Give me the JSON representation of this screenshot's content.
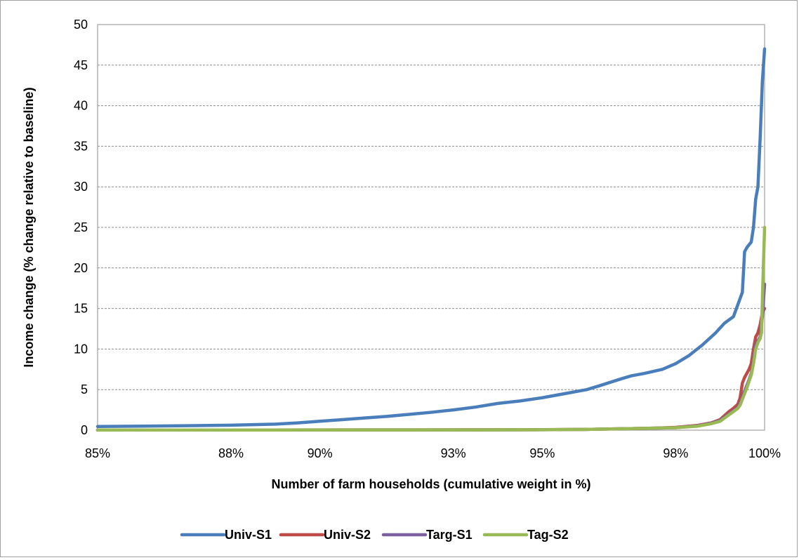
{
  "chart_data": {
    "type": "line",
    "title": "",
    "xlabel": "Number of farm households (cumulative weight in %)",
    "ylabel": "Income change (% change relative to baseline)",
    "xlim": [
      85,
      100
    ],
    "ylim": [
      0,
      50
    ],
    "x_ticks": [
      85,
      88,
      90,
      93,
      95,
      98,
      100
    ],
    "x_tick_labels": [
      "85%",
      "88%",
      "90%",
      "93%",
      "95%",
      "98%",
      "100%"
    ],
    "y_ticks": [
      0,
      5,
      10,
      15,
      20,
      25,
      30,
      35,
      40,
      45,
      50
    ],
    "y_tick_labels": [
      "0",
      "5",
      "10",
      "15",
      "20",
      "25",
      "30",
      "35",
      "40",
      "45",
      "50"
    ],
    "grid": "horizontal dashed",
    "legend_position": "bottom",
    "series": [
      {
        "name": "Univ-S1",
        "color": "#4a7ebb",
        "points": [
          [
            85.0,
            0.45
          ],
          [
            86.0,
            0.5
          ],
          [
            87.0,
            0.55
          ],
          [
            88.0,
            0.62
          ],
          [
            89.0,
            0.75
          ],
          [
            89.5,
            0.9
          ],
          [
            90.0,
            1.1
          ],
          [
            90.5,
            1.3
          ],
          [
            91.0,
            1.5
          ],
          [
            91.5,
            1.7
          ],
          [
            92.0,
            1.95
          ],
          [
            92.5,
            2.2
          ],
          [
            93.0,
            2.5
          ],
          [
            93.5,
            2.85
          ],
          [
            94.0,
            3.3
          ],
          [
            94.5,
            3.6
          ],
          [
            95.0,
            4.0
          ],
          [
            95.5,
            4.5
          ],
          [
            96.0,
            5.0
          ],
          [
            96.3,
            5.5
          ],
          [
            96.7,
            6.2
          ],
          [
            97.0,
            6.7
          ],
          [
            97.3,
            7.0
          ],
          [
            97.7,
            7.5
          ],
          [
            98.0,
            8.2
          ],
          [
            98.3,
            9.2
          ],
          [
            98.6,
            10.5
          ],
          [
            98.9,
            12.0
          ],
          [
            99.1,
            13.2
          ],
          [
            99.3,
            14.0
          ],
          [
            99.4,
            15.5
          ],
          [
            99.5,
            17.0
          ],
          [
            99.55,
            22.0
          ],
          [
            99.6,
            22.5
          ],
          [
            99.7,
            23.2
          ],
          [
            99.75,
            25.0
          ],
          [
            99.8,
            28.5
          ],
          [
            99.85,
            30.0
          ],
          [
            99.9,
            36.0
          ],
          [
            99.95,
            43.0
          ],
          [
            100.0,
            47.0
          ]
        ]
      },
      {
        "name": "Univ-S2",
        "color": "#be4b48",
        "points": [
          [
            85.0,
            0.02
          ],
          [
            92.0,
            0.03
          ],
          [
            95.0,
            0.06
          ],
          [
            96.0,
            0.1
          ],
          [
            97.0,
            0.2
          ],
          [
            97.5,
            0.25
          ],
          [
            98.0,
            0.35
          ],
          [
            98.5,
            0.6
          ],
          [
            98.8,
            0.9
          ],
          [
            99.0,
            1.3
          ],
          [
            99.1,
            1.8
          ],
          [
            99.2,
            2.3
          ],
          [
            99.3,
            2.7
          ],
          [
            99.4,
            3.2
          ],
          [
            99.45,
            4.0
          ],
          [
            99.5,
            5.8
          ],
          [
            99.55,
            6.5
          ],
          [
            99.6,
            7.0
          ],
          [
            99.65,
            7.5
          ],
          [
            99.7,
            8.2
          ],
          [
            99.75,
            10.0
          ],
          [
            99.8,
            11.5
          ],
          [
            99.85,
            12.0
          ],
          [
            99.9,
            13.0
          ],
          [
            99.95,
            14.5
          ],
          [
            100.0,
            15.0
          ]
        ]
      },
      {
        "name": "Targ-S1",
        "color": "#7d60a0",
        "points": [
          [
            85.0,
            0.02
          ],
          [
            92.0,
            0.03
          ],
          [
            95.0,
            0.05
          ],
          [
            96.0,
            0.1
          ],
          [
            97.0,
            0.2
          ],
          [
            97.5,
            0.25
          ],
          [
            98.0,
            0.3
          ],
          [
            98.5,
            0.55
          ],
          [
            98.8,
            0.85
          ],
          [
            99.0,
            1.2
          ],
          [
            99.1,
            1.6
          ],
          [
            99.2,
            2.0
          ],
          [
            99.3,
            2.4
          ],
          [
            99.4,
            2.8
          ],
          [
            99.45,
            3.3
          ],
          [
            99.5,
            4.0
          ],
          [
            99.55,
            4.8
          ],
          [
            99.6,
            5.5
          ],
          [
            99.65,
            6.2
          ],
          [
            99.7,
            7.0
          ],
          [
            99.75,
            8.5
          ],
          [
            99.8,
            10.5
          ],
          [
            99.85,
            11.0
          ],
          [
            99.9,
            11.5
          ],
          [
            99.95,
            14.0
          ],
          [
            100.0,
            18.0
          ]
        ]
      },
      {
        "name": "Tag-S2",
        "color": "#98b954",
        "points": [
          [
            85.0,
            0.02
          ],
          [
            92.0,
            0.03
          ],
          [
            95.0,
            0.05
          ],
          [
            96.0,
            0.1
          ],
          [
            97.0,
            0.2
          ],
          [
            97.5,
            0.25
          ],
          [
            98.0,
            0.3
          ],
          [
            98.5,
            0.5
          ],
          [
            98.8,
            0.8
          ],
          [
            99.0,
            1.1
          ],
          [
            99.1,
            1.5
          ],
          [
            99.2,
            1.9
          ],
          [
            99.3,
            2.3
          ],
          [
            99.4,
            2.7
          ],
          [
            99.45,
            3.1
          ],
          [
            99.5,
            3.8
          ],
          [
            99.55,
            4.5
          ],
          [
            99.6,
            5.2
          ],
          [
            99.65,
            6.0
          ],
          [
            99.7,
            6.8
          ],
          [
            99.75,
            8.2
          ],
          [
            99.8,
            10.0
          ],
          [
            99.85,
            10.8
          ],
          [
            99.9,
            11.3
          ],
          [
            99.93,
            12.0
          ],
          [
            99.96,
            18.0
          ],
          [
            100.0,
            25.0
          ]
        ]
      }
    ]
  }
}
